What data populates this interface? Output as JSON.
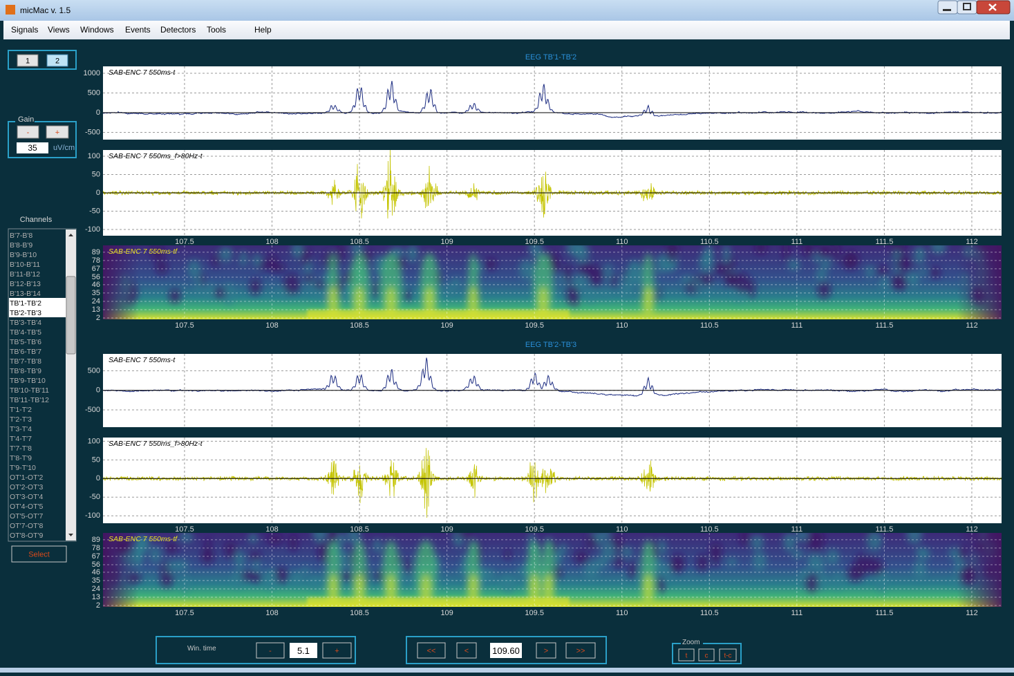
{
  "window": {
    "title": "micMac v. 1.5"
  },
  "menu": [
    "Signals",
    "Views",
    "Windows",
    "Events",
    "Detectors",
    "Tools",
    "Help"
  ],
  "page_buttons": [
    "1",
    "2"
  ],
  "gain": {
    "label": "Gain",
    "minus": "-",
    "plus": "+",
    "value": "35",
    "unit": "uV/cm"
  },
  "channels": {
    "label": "Channels",
    "items": [
      "B'7-B'8",
      "B'8-B'9",
      "B'9-B'10",
      "B'10-B'11",
      "B'11-B'12",
      "B'12-B'13",
      "B'13-B'14",
      "TB'1-TB'2",
      "TB'2-TB'3",
      "TB'3-TB'4",
      "TB'4-TB'5",
      "TB'5-TB'6",
      "TB'6-TB'7",
      "TB'7-TB'8",
      "TB'8-TB'9",
      "TB'9-TB'10",
      "TB'10-TB'11",
      "TB'11-TB'12",
      "T'1-T'2",
      "T'2-T'3",
      "T'3-T'4",
      "T'4-T'7",
      "T'7-T'8",
      "T'8-T'9",
      "T'9-T'10",
      "OT'1-OT'2",
      "OT'2-OT'3",
      "OT'3-OT'4",
      "OT'4-OT'5",
      "OT'5-OT'7",
      "OT'7-OT'8",
      "OT'8-OT'9"
    ],
    "button": "Select"
  },
  "time_axis": {
    "xlim": [
      107.034,
      112.17
    ],
    "xticks": [
      107.5,
      108,
      108.5,
      109,
      109.5,
      110,
      110.5,
      111,
      111.5,
      112
    ]
  },
  "panels": [
    {
      "title": "EEG TB'1-TB'2",
      "plots": [
        {
          "type": "line",
          "label": "SAB-ENC 7 550ms-t",
          "color": "#1a2a80",
          "ylim": [
            -684,
            1175
          ],
          "yticks": [
            1000,
            500,
            0,
            -500
          ]
        },
        {
          "type": "line",
          "label": "SAB-ENC 7 550ms_f>80Hz-t",
          "color": "#c4c400",
          "ylim": [
            -117,
            117
          ],
          "yticks": [
            100,
            50,
            0,
            -50,
            -100
          ]
        },
        {
          "type": "heatmap",
          "label": "SAB-ENC 7 550ms-tf",
          "ylim": [
            0.2,
            98
          ],
          "yticks": [
            89,
            78,
            67,
            56,
            46,
            35,
            24,
            13,
            2
          ]
        }
      ]
    },
    {
      "title": "EEG TB'2-TB'3",
      "plots": [
        {
          "type": "line",
          "label": "SAB-ENC 7 550ms-t",
          "color": "#1a2a80",
          "ylim": [
            -940,
            930
          ],
          "yticks": [
            500,
            0,
            -500
          ]
        },
        {
          "type": "line",
          "label": "SAB-ENC 7 550ms_f>80Hz-t",
          "color": "#c4c400",
          "ylim": [
            -120,
            110
          ],
          "yticks": [
            100,
            50,
            0,
            -50,
            -100
          ]
        },
        {
          "type": "heatmap",
          "label": "SAB-ENC 7 550ms-tf",
          "ylim": [
            0.2,
            98
          ],
          "yticks": [
            89,
            78,
            67,
            56,
            46,
            35,
            24,
            13,
            2
          ]
        }
      ]
    }
  ],
  "controls": {
    "win_time_label": "Win. time",
    "minus": "-",
    "win_time": "5.1",
    "plus": "+",
    "nav": [
      "<<",
      "<",
      "109.60",
      ">",
      ">>"
    ],
    "zoom": {
      "label": "Zoom",
      "buttons": [
        "t",
        "c",
        "t-c"
      ]
    }
  }
}
